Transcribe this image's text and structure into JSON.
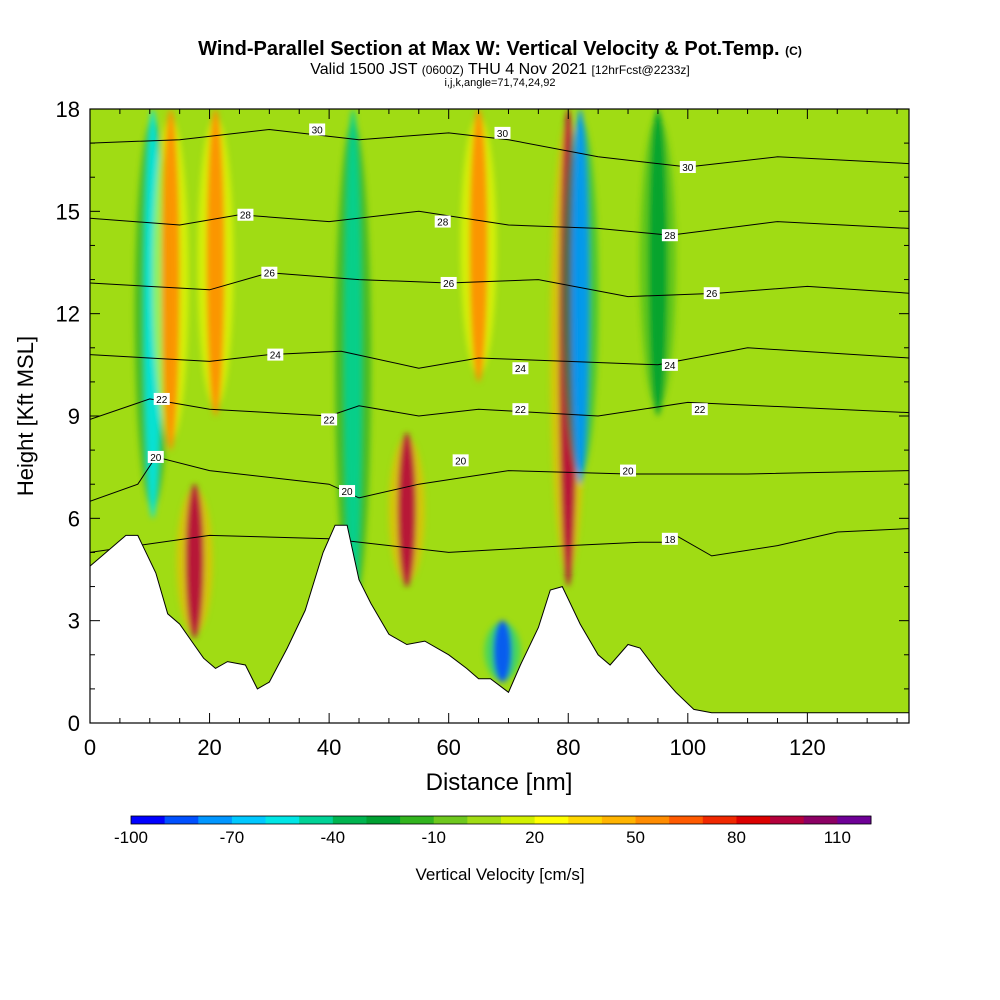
{
  "title": {
    "main": "Wind-Parallel Section at Max W: Vertical Velocity & Pot.Temp.",
    "main_tag": "(C)",
    "valid_prefix": "Valid 1500 JST",
    "valid_zulu": "(0600Z)",
    "valid_date": "THU 4 Nov 2021",
    "forecast": "[12hrFcst@2233z]",
    "indices": "i,j,k,angle=71,74,24,92"
  },
  "chart_data": {
    "type": "heatmap",
    "xlabel": "Distance [nm]",
    "ylabel": "Height [Kft MSL]",
    "xlim": [
      0,
      137
    ],
    "ylim": [
      0,
      18
    ],
    "x_ticks": [
      0,
      20,
      40,
      60,
      80,
      100,
      120
    ],
    "x_tick_labels": [
      "0",
      "20",
      "40",
      "60",
      "80",
      "100",
      "120"
    ],
    "y_ticks": [
      0,
      3,
      6,
      9,
      12,
      15,
      18
    ],
    "y_tick_labels": [
      "0",
      "3",
      "6",
      "9",
      "12",
      "15",
      "18"
    ],
    "colorbar": {
      "label": "Vertical Velocity [cm/s]",
      "min": -100,
      "max": 120,
      "step": 10,
      "tick_values": [
        -100,
        -70,
        -40,
        -10,
        20,
        50,
        80,
        110
      ],
      "tick_labels": [
        "-100",
        "-70",
        "-40",
        "-10",
        "20",
        "50",
        "80",
        "110"
      ],
      "colors": [
        "#0000ff",
        "#0050ff",
        "#0096ff",
        "#00c8ff",
        "#00e6e6",
        "#00d296",
        "#00b450",
        "#00a032",
        "#32b41e",
        "#6ec81e",
        "#a0dc14",
        "#d2f000",
        "#ffff00",
        "#ffd700",
        "#ffb400",
        "#ff8c00",
        "#ff5a00",
        "#f02800",
        "#dc0000",
        "#b4003c",
        "#8c0064",
        "#6e0096"
      ]
    },
    "w_features": [
      {
        "x": 10.5,
        "z_bottom": 6,
        "z_top": 18,
        "w": -60
      },
      {
        "x": 13.5,
        "z_bottom": 8,
        "z_top": 18,
        "w": 55
      },
      {
        "x": 17.5,
        "z_bottom": 2.5,
        "z_top": 7,
        "w": 95
      },
      {
        "x": 21,
        "z_bottom": 9,
        "z_top": 18,
        "w": 50
      },
      {
        "x": 44,
        "z_bottom": 3,
        "z_top": 18,
        "w": -45
      },
      {
        "x": 53,
        "z_bottom": 4,
        "z_top": 8.5,
        "w": 90
      },
      {
        "x": 69,
        "z_bottom": 1.2,
        "z_top": 3,
        "w": -90
      },
      {
        "x": 80,
        "z_bottom": 4,
        "z_top": 18,
        "w": 95
      },
      {
        "x": 82,
        "z_bottom": 7,
        "z_top": 18,
        "w": -75
      },
      {
        "x": 65,
        "z_bottom": 10,
        "z_top": 18,
        "w": 50
      },
      {
        "x": 95,
        "z_bottom": 9,
        "z_top": 18,
        "w": -25
      }
    ],
    "terrain_kft": [
      [
        0,
        4.6
      ],
      [
        2,
        4.9
      ],
      [
        6,
        5.5
      ],
      [
        8,
        5.5
      ],
      [
        11,
        4.4
      ],
      [
        13,
        3.2
      ],
      [
        15,
        2.9
      ],
      [
        17,
        2.4
      ],
      [
        19,
        1.9
      ],
      [
        21,
        1.6
      ],
      [
        23,
        1.8
      ],
      [
        26,
        1.7
      ],
      [
        28,
        1.0
      ],
      [
        30,
        1.2
      ],
      [
        33,
        2.2
      ],
      [
        36,
        3.3
      ],
      [
        39,
        5.0
      ],
      [
        41,
        5.8
      ],
      [
        43,
        5.8
      ],
      [
        45,
        4.2
      ],
      [
        47,
        3.5
      ],
      [
        50,
        2.6
      ],
      [
        53,
        2.3
      ],
      [
        56,
        2.4
      ],
      [
        60,
        2.0
      ],
      [
        63,
        1.6
      ],
      [
        65,
        1.3
      ],
      [
        67,
        1.3
      ],
      [
        70,
        0.9
      ],
      [
        72,
        1.7
      ],
      [
        75,
        2.8
      ],
      [
        77,
        3.9
      ],
      [
        79,
        4.0
      ],
      [
        82,
        2.9
      ],
      [
        85,
        2.0
      ],
      [
        87,
        1.7
      ],
      [
        90,
        2.3
      ],
      [
        92,
        2.2
      ],
      [
        95,
        1.5
      ],
      [
        98,
        0.9
      ],
      [
        101,
        0.4
      ],
      [
        104,
        0.3
      ],
      [
        108,
        0.3
      ],
      [
        137,
        0.3
      ]
    ],
    "theta_contours": [
      {
        "level": 18,
        "label": "18",
        "x": [
          0,
          20,
          40,
          60,
          80,
          92,
          96,
          98,
          104,
          115,
          125,
          137
        ],
        "y": [
          5.0,
          5.5,
          5.4,
          5.0,
          5.2,
          5.3,
          5.3,
          5.5,
          4.9,
          5.2,
          5.6,
          5.7
        ]
      },
      {
        "level": 20,
        "label": "20",
        "x": [
          0,
          8,
          11,
          20,
          40,
          45,
          55,
          70,
          90,
          110,
          137
        ],
        "y": [
          6.5,
          7.0,
          7.8,
          7.4,
          7.0,
          6.6,
          7.0,
          7.4,
          7.3,
          7.3,
          7.4
        ]
      },
      {
        "level": 22,
        "label": "22",
        "x": [
          0,
          10,
          20,
          40,
          45,
          55,
          65,
          85,
          100,
          137
        ],
        "y": [
          8.9,
          9.5,
          9.2,
          9.0,
          9.3,
          9.0,
          9.2,
          9.0,
          9.4,
          9.1
        ]
      },
      {
        "level": 24,
        "label": "24",
        "x": [
          0,
          20,
          30,
          42,
          55,
          65,
          80,
          95,
          110,
          137
        ],
        "y": [
          10.8,
          10.6,
          10.8,
          10.9,
          10.4,
          10.7,
          10.6,
          10.5,
          11.0,
          10.7
        ]
      },
      {
        "level": 26,
        "label": "26",
        "x": [
          0,
          20,
          30,
          45,
          60,
          75,
          90,
          105,
          120,
          137
        ],
        "y": [
          12.9,
          12.7,
          13.2,
          13.0,
          12.9,
          13.0,
          12.5,
          12.6,
          12.8,
          12.6
        ]
      },
      {
        "level": 28,
        "label": "28",
        "x": [
          0,
          15,
          25,
          40,
          55,
          70,
          85,
          97,
          115,
          137
        ],
        "y": [
          14.8,
          14.6,
          14.9,
          14.7,
          15.0,
          14.6,
          14.5,
          14.3,
          14.7,
          14.5
        ]
      },
      {
        "level": 30,
        "label": "30",
        "x": [
          0,
          15,
          30,
          45,
          60,
          70,
          85,
          100,
          115,
          137
        ],
        "y": [
          17.0,
          17.1,
          17.4,
          17.1,
          17.3,
          17.1,
          16.6,
          16.3,
          16.6,
          16.4
        ]
      }
    ],
    "contour_labels": [
      {
        "text": "30",
        "x": 38,
        "y": 17.4
      },
      {
        "text": "30",
        "x": 69,
        "y": 17.3
      },
      {
        "text": "30",
        "x": 100,
        "y": 16.3
      },
      {
        "text": "28",
        "x": 26,
        "y": 14.9
      },
      {
        "text": "28",
        "x": 59,
        "y": 14.7
      },
      {
        "text": "28",
        "x": 97,
        "y": 14.3
      },
      {
        "text": "26",
        "x": 30,
        "y": 13.2
      },
      {
        "text": "26",
        "x": 60,
        "y": 12.9
      },
      {
        "text": "26",
        "x": 104,
        "y": 12.6
      },
      {
        "text": "24",
        "x": 31,
        "y": 10.8
      },
      {
        "text": "24",
        "x": 72,
        "y": 10.4
      },
      {
        "text": "24",
        "x": 97,
        "y": 10.5
      },
      {
        "text": "22",
        "x": 12,
        "y": 9.5
      },
      {
        "text": "22",
        "x": 40,
        "y": 8.9
      },
      {
        "text": "22",
        "x": 72,
        "y": 9.2
      },
      {
        "text": "22",
        "x": 102,
        "y": 9.2
      },
      {
        "text": "20",
        "x": 11,
        "y": 7.8
      },
      {
        "text": "20",
        "x": 43,
        "y": 6.8
      },
      {
        "text": "20",
        "x": 62,
        "y": 7.7
      },
      {
        "text": "20",
        "x": 90,
        "y": 7.4
      },
      {
        "text": "18",
        "x": 97,
        "y": 5.4
      }
    ]
  }
}
